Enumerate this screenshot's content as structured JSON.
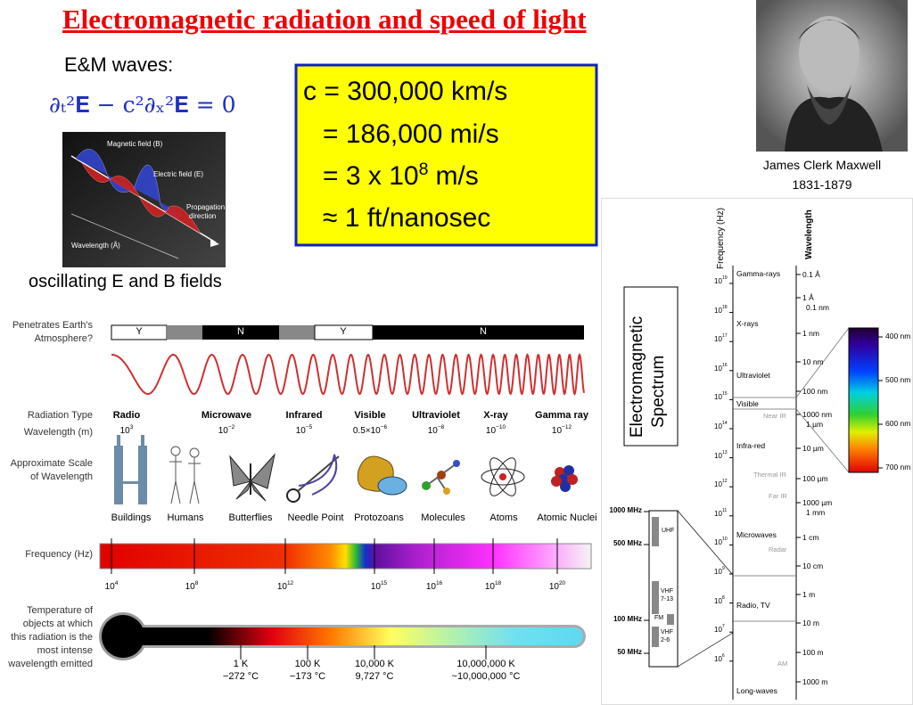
{
  "title": "Electromagnetic radiation and speed of light",
  "em_waves": {
    "label": "E&M waves:",
    "equation": "∂ₜ²𝐄 − c²∂ₓ²𝐄 = 0",
    "figure_labels": [
      "Magnetic field (B)",
      "Electric field (E)",
      "Propagation",
      "direction",
      "Wavelength (Å)"
    ],
    "caption": "oscillating E and B fields"
  },
  "speed_box": {
    "line1": "c = 300,000 km/s",
    "line2": "= 186,000 mi/s",
    "line3": {
      "text": "= 3 x 10",
      "exp": "8",
      "unit": "m/s"
    },
    "line4": "≈ 1 ft/nanosec"
  },
  "portrait": {
    "name": "James Clerk Maxwell",
    "years": "1831-1879"
  },
  "spectrum_chart": {
    "row_labels": {
      "atmosphere": [
        "Penetrates Earth's",
        "Atmosphere?"
      ],
      "radiation_type": "Radiation Type",
      "wavelength": "Wavelength (m)",
      "scale": [
        "Approximate Scale",
        "of Wavelength"
      ],
      "frequency": "Frequency (Hz)",
      "temperature": [
        "Temperature of",
        "objects at which",
        "this radiation is the",
        "most intense",
        "wavelength emitted"
      ]
    },
    "atmosphere_segments": [
      "Y",
      "N",
      "Y",
      "N"
    ],
    "radiation_types": [
      {
        "name": "Radio",
        "base": "10",
        "exp": "3"
      },
      {
        "name": "Microwave",
        "base": "10",
        "exp": "−2"
      },
      {
        "name": "Infrared",
        "base": "10",
        "exp": "−5"
      },
      {
        "name": "Visible",
        "base": "0.5×10",
        "exp": "−6"
      },
      {
        "name": "Ultraviolet",
        "base": "10",
        "exp": "−8"
      },
      {
        "name": "X-ray",
        "base": "10",
        "exp": "−10"
      },
      {
        "name": "Gamma ray",
        "base": "10",
        "exp": "−12"
      }
    ],
    "scale_objects": [
      "Buildings",
      "Humans",
      "Butterflies",
      "Needle Point",
      "Protozoans",
      "Molecules",
      "Atoms",
      "Atomic Nuclei"
    ],
    "frequency_ticks": [
      {
        "base": "10",
        "exp": "4"
      },
      {
        "base": "10",
        "exp": "8"
      },
      {
        "base": "10",
        "exp": "12"
      },
      {
        "base": "10",
        "exp": "15"
      },
      {
        "base": "10",
        "exp": "16"
      },
      {
        "base": "10",
        "exp": "18"
      },
      {
        "base": "10",
        "exp": "20"
      }
    ],
    "temperatures": [
      {
        "kelvin": "1 K",
        "celsius": "−272 °C"
      },
      {
        "kelvin": "100 K",
        "celsius": "−173 °C"
      },
      {
        "kelvin": "10,000 K",
        "celsius": "9,727 °C"
      },
      {
        "kelvin": "10,000,000 K",
        "celsius": "~10,000,000 °C"
      }
    ]
  },
  "spectrum_panel": {
    "title": [
      "Electromagnetic",
      "Spectrum"
    ],
    "frequency_axis_label": "Frequency (Hz)",
    "wavelength_axis_label": "Wavelength",
    "frequency_ticks": [
      {
        "base": "10",
        "exp": "19"
      },
      {
        "base": "10",
        "exp": "18"
      },
      {
        "base": "10",
        "exp": "17"
      },
      {
        "base": "10",
        "exp": "16"
      },
      {
        "base": "10",
        "exp": "15"
      },
      {
        "base": "10",
        "exp": "14"
      },
      {
        "base": "10",
        "exp": "13"
      },
      {
        "base": "10",
        "exp": "12"
      },
      {
        "base": "10",
        "exp": "11"
      },
      {
        "base": "10",
        "exp": "10"
      },
      {
        "base": "10",
        "exp": "9"
      },
      {
        "base": "10",
        "exp": "8"
      },
      {
        "base": "10",
        "exp": "7"
      },
      {
        "base": "10",
        "exp": "6"
      }
    ],
    "regions": [
      "Gamma-rays",
      "X-rays",
      "Ultraviolet",
      "Visible",
      "Near IR",
      "Infra-red",
      "Thermal IR",
      "Far IR",
      "Microwaves",
      "Radar",
      "Radio, TV",
      "AM",
      "Long-waves"
    ],
    "wavelengths": [
      "0.1 Å",
      [
        "1 Å",
        "0.1 nm"
      ],
      "1 nm",
      "10 nm",
      "100 nm",
      [
        "1000 nm",
        "1 µm"
      ],
      "10 µm",
      "100 µm",
      [
        "1000 µm",
        "1 mm"
      ],
      "1 cm",
      "10 cm",
      "1 m",
      "10 m",
      "100 m",
      "1000 m"
    ],
    "visible_ticks": [
      "400 nm",
      "500 nm",
      "600 nm",
      "700 nm"
    ],
    "radio_frequencies": [
      "1000 MHz",
      "500 MHz",
      "100 MHz",
      "50 MHz"
    ],
    "bands": [
      "UHF",
      [
        "VHF",
        "7-13"
      ],
      "FM",
      [
        "VHF",
        "2-6"
      ]
    ]
  }
}
